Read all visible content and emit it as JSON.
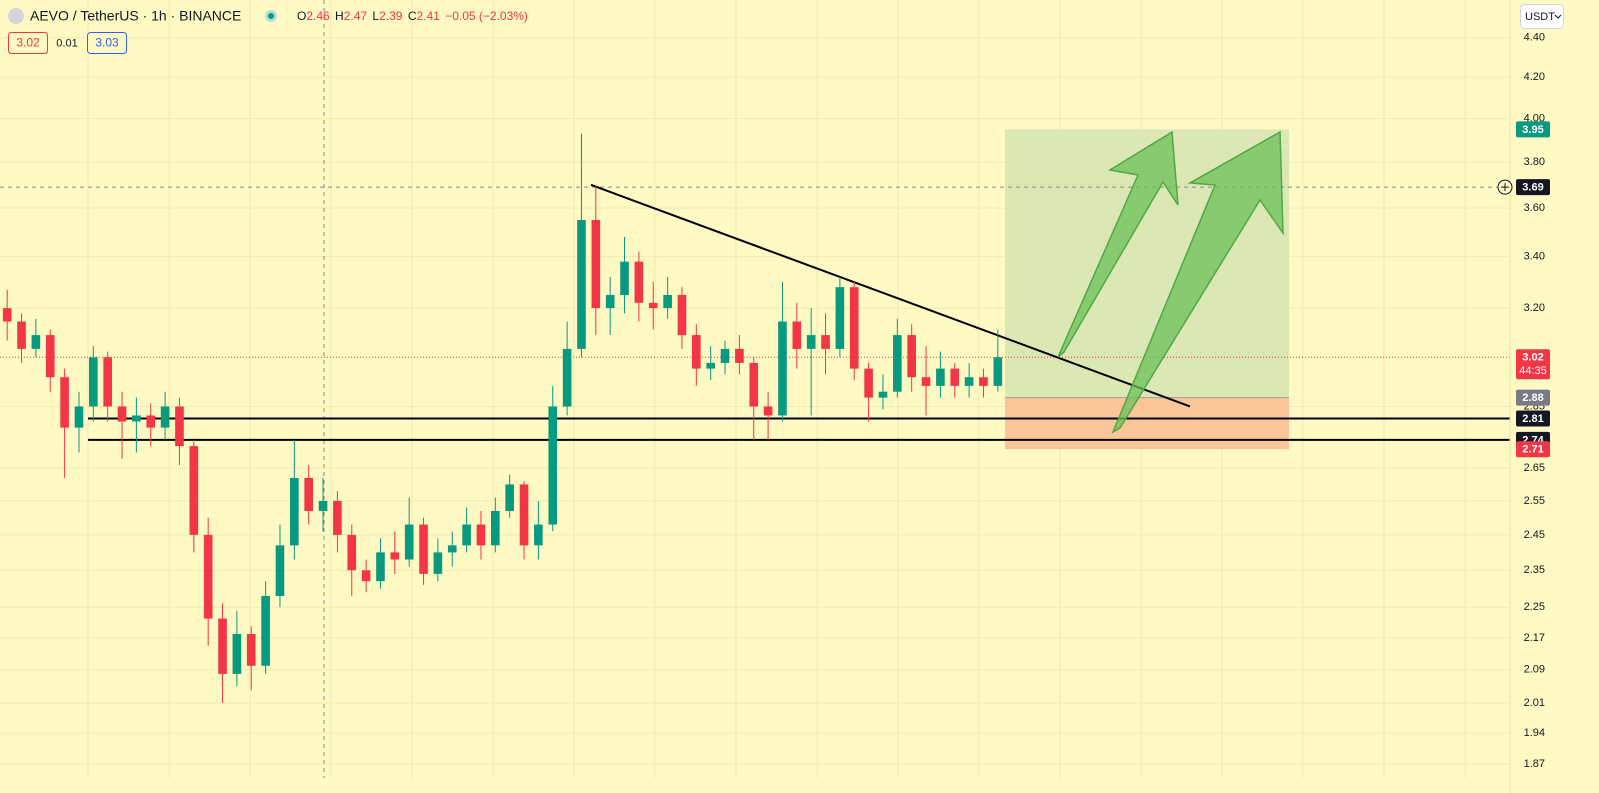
{
  "chart_data": {
    "type": "candlestick",
    "title": "AEVO / TetherUS · 1h · BINANCE",
    "ohlc_labels": [
      "O",
      "H",
      "L",
      "C"
    ],
    "ohlc": [
      2.46,
      2.47,
      2.39,
      2.41
    ],
    "change": {
      "value": -0.05,
      "label": "−0.05"
    },
    "change_pct": {
      "value": -2.03,
      "label": "(−2.03%)"
    },
    "bid": 3.02,
    "spread": 0.01,
    "ask": 3.03,
    "currency": "USDT",
    "log_scale": true,
    "ylim": [
      1.84,
      4.6
    ],
    "yticks": [
      {
        "value": 4.4,
        "label": "4.40"
      },
      {
        "value": 4.2,
        "label": "4.20"
      },
      {
        "value": 4.0,
        "label": "4.00"
      },
      {
        "value": 3.8,
        "label": "3.80"
      },
      {
        "value": 3.6,
        "label": "3.60"
      },
      {
        "value": 3.4,
        "label": "3.40"
      },
      {
        "value": 3.2,
        "label": "3.20"
      },
      2.85,
      2.65,
      2.55,
      2.45,
      2.35,
      2.25,
      2.17,
      2.09,
      2.01,
      1.94,
      1.87
    ],
    "up_color": "#089981",
    "down_color": "#f23645",
    "open": [
      3.2,
      3.15,
      3.05,
      3.1,
      2.95,
      2.78,
      2.85,
      3.02,
      2.85,
      2.8,
      2.82,
      2.78,
      2.85,
      2.72,
      2.45,
      2.22,
      2.08,
      2.18,
      2.1,
      2.28,
      2.42,
      2.62,
      2.52,
      2.55,
      2.45,
      2.35,
      2.32,
      2.4,
      2.38,
      2.48,
      2.34,
      2.4,
      2.42,
      2.48,
      2.42,
      2.52,
      2.6,
      2.42,
      2.48,
      2.85,
      3.05,
      3.55,
      3.2,
      3.25,
      3.38,
      3.22,
      3.2,
      3.25,
      3.1,
      2.98,
      3.0,
      3.05,
      3.0,
      2.85,
      2.82,
      3.15,
      3.05,
      3.1,
      3.05,
      3.28,
      2.98,
      2.88,
      2.9,
      3.1,
      2.95,
      2.92,
      2.98,
      2.92,
      2.95,
      2.92
    ],
    "high": [
      3.27,
      3.18,
      3.16,
      3.12,
      2.98,
      2.9,
      3.06,
      3.04,
      2.9,
      2.88,
      2.86,
      2.9,
      2.88,
      2.74,
      2.5,
      2.26,
      2.24,
      2.2,
      2.32,
      2.48,
      2.74,
      2.66,
      2.62,
      2.58,
      2.48,
      2.38,
      2.44,
      2.46,
      2.56,
      2.5,
      2.44,
      2.46,
      2.53,
      2.52,
      2.56,
      2.63,
      2.61,
      2.55,
      2.92,
      3.15,
      3.93,
      3.7,
      3.32,
      3.48,
      3.42,
      3.3,
      3.32,
      3.28,
      3.14,
      3.06,
      3.08,
      3.1,
      3.02,
      2.9,
      3.3,
      3.22,
      3.2,
      3.18,
      3.32,
      3.3,
      3.0,
      2.96,
      3.16,
      3.14,
      3.06,
      3.04,
      3.0,
      3.0,
      2.98,
      3.12
    ],
    "low": [
      3.08,
      3.0,
      3.02,
      2.9,
      2.62,
      2.7,
      2.8,
      2.8,
      2.68,
      2.7,
      2.72,
      2.74,
      2.66,
      2.4,
      2.15,
      2.01,
      2.05,
      2.04,
      2.08,
      2.25,
      2.38,
      2.48,
      2.46,
      2.4,
      2.28,
      2.29,
      2.3,
      2.34,
      2.36,
      2.31,
      2.32,
      2.36,
      2.4,
      2.38,
      2.4,
      2.5,
      2.38,
      2.38,
      2.46,
      2.82,
      3.02,
      3.1,
      3.1,
      3.18,
      3.15,
      3.12,
      3.16,
      3.05,
      2.92,
      2.94,
      2.96,
      2.96,
      2.74,
      2.74,
      2.8,
      2.98,
      2.82,
      2.96,
      3.02,
      2.94,
      2.8,
      2.84,
      2.88,
      2.9,
      2.82,
      2.88,
      2.88,
      2.88,
      2.88,
      2.9
    ],
    "close": [
      3.15,
      3.05,
      3.1,
      2.95,
      2.78,
      2.85,
      3.02,
      2.85,
      2.8,
      2.82,
      2.78,
      2.85,
      2.72,
      2.45,
      2.22,
      2.08,
      2.18,
      2.1,
      2.28,
      2.42,
      2.62,
      2.52,
      2.55,
      2.45,
      2.35,
      2.32,
      2.4,
      2.38,
      2.48,
      2.34,
      2.4,
      2.42,
      2.48,
      2.42,
      2.52,
      2.6,
      2.42,
      2.48,
      2.85,
      3.05,
      3.55,
      3.2,
      3.25,
      3.38,
      3.22,
      3.2,
      3.25,
      3.1,
      2.98,
      3.0,
      3.05,
      3.0,
      2.85,
      2.82,
      3.15,
      3.05,
      3.1,
      3.05,
      3.28,
      2.98,
      2.88,
      2.9,
      3.1,
      2.95,
      2.92,
      2.98,
      2.92,
      2.95,
      2.92,
      3.02
    ],
    "trendline": [
      3.7,
      2.85
    ],
    "support_levels": [
      2.81,
      2.74
    ],
    "position": {
      "target": 3.95,
      "entry": 2.88,
      "stop": 2.71
    },
    "crosshair_price": 3.69,
    "last_price": 3.02,
    "countdown": "44:35"
  }
}
